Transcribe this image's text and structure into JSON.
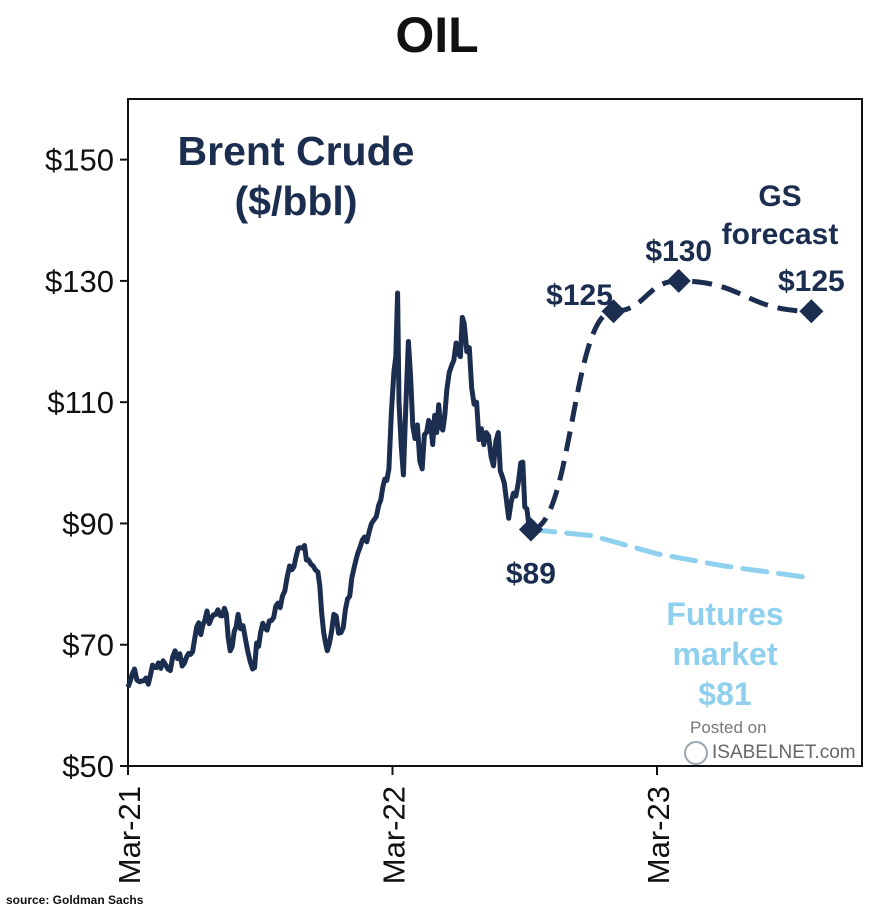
{
  "chart_data": {
    "type": "line",
    "title": "OIL",
    "subtitle": "Brent Crude ($/bbl)",
    "source": "source: Goldman Sachs",
    "watermark": {
      "posted": "Posted on",
      "brand": "ISABELNET.com"
    },
    "ylim": [
      50,
      160
    ],
    "yticks": [
      50,
      70,
      90,
      110,
      130,
      150
    ],
    "ytick_labels": [
      "$50",
      "$70",
      "$90",
      "$110",
      "$130",
      "$150"
    ],
    "xlim": [
      "2021-03-01",
      "2023-09-30"
    ],
    "xticks": [
      "2021-03-01",
      "2022-03-01",
      "2023-03-01"
    ],
    "xtick_labels": [
      "Mar-21",
      "Mar-22",
      "Mar-23"
    ],
    "grid": false,
    "colors": {
      "history": "#1c2e4f",
      "forecast": "#1c2e4f",
      "futures": "#8fd0ee"
    },
    "series": [
      {
        "style": "solid",
        "points": [
          [
            "2021-03-01",
            63
          ],
          [
            "2021-03-10",
            66
          ],
          [
            "2021-03-20",
            64
          ],
          [
            "2021-04-01",
            65
          ],
          [
            "2021-04-12",
            67
          ],
          [
            "2021-04-25",
            66
          ],
          [
            "2021-05-05",
            69
          ],
          [
            "2021-05-18",
            67
          ],
          [
            "2021-06-01",
            71
          ],
          [
            "2021-06-15",
            74
          ],
          [
            "2021-06-30",
            75
          ],
          [
            "2021-07-12",
            76
          ],
          [
            "2021-07-20",
            69
          ],
          [
            "2021-07-31",
            75
          ],
          [
            "2021-08-10",
            71
          ],
          [
            "2021-08-20",
            66
          ],
          [
            "2021-08-31",
            72
          ],
          [
            "2021-09-15",
            74
          ],
          [
            "2021-09-30",
            78
          ],
          [
            "2021-10-10",
            83
          ],
          [
            "2021-10-25",
            86
          ],
          [
            "2021-11-05",
            84
          ],
          [
            "2021-11-18",
            82
          ],
          [
            "2021-11-26",
            72
          ],
          [
            "2021-12-01",
            69
          ],
          [
            "2021-12-10",
            75
          ],
          [
            "2021-12-20",
            72
          ],
          [
            "2022-01-01",
            78
          ],
          [
            "2022-01-15",
            86
          ],
          [
            "2022-01-31",
            90
          ],
          [
            "2022-02-10",
            93
          ],
          [
            "2022-02-24",
            99
          ],
          [
            "2022-03-03",
            115
          ],
          [
            "2022-03-08",
            128
          ],
          [
            "2022-03-10",
            110
          ],
          [
            "2022-03-16",
            98
          ],
          [
            "2022-03-23",
            120
          ],
          [
            "2022-04-01",
            104
          ],
          [
            "2022-04-11",
            99
          ],
          [
            "2022-04-20",
            107
          ],
          [
            "2022-05-01",
            105
          ],
          [
            "2022-05-15",
            112
          ],
          [
            "2022-05-31",
            118
          ],
          [
            "2022-06-08",
            123
          ],
          [
            "2022-06-15",
            119
          ],
          [
            "2022-06-25",
            110
          ],
          [
            "2022-07-05",
            103
          ],
          [
            "2022-07-15",
            101
          ],
          [
            "2022-07-25",
            105
          ],
          [
            "2022-08-05",
            94
          ],
          [
            "2022-08-15",
            95
          ],
          [
            "2022-08-25",
            100
          ],
          [
            "2022-09-08",
            89
          ]
        ]
      },
      {
        "style": "dashed",
        "points": [
          [
            "2022-09-08",
            89
          ],
          [
            "2022-12-31",
            125
          ],
          [
            "2023-03-31",
            130
          ],
          [
            "2023-09-30",
            125
          ]
        ]
      },
      {
        "style": "dashed",
        "points": [
          [
            "2022-09-08",
            89
          ],
          [
            "2022-12-01",
            88
          ],
          [
            "2023-03-01",
            85
          ],
          [
            "2023-06-01",
            83
          ],
          [
            "2023-09-30",
            81
          ]
        ]
      }
    ],
    "markers": [
      {
        "x": "2022-09-08",
        "y": 89,
        "label": "$89",
        "pos": "below"
      },
      {
        "x": "2022-12-31",
        "y": 125,
        "label": "$125",
        "pos": "left"
      },
      {
        "x": "2023-03-31",
        "y": 130,
        "label": "$130",
        "pos": "above"
      },
      {
        "x": "2023-09-30",
        "y": 125,
        "label": "$125",
        "pos": "above"
      }
    ],
    "annotations": {
      "gs_forecast": [
        "GS",
        "forecast"
      ],
      "futures": [
        "Futures",
        "market",
        "$81"
      ]
    }
  }
}
